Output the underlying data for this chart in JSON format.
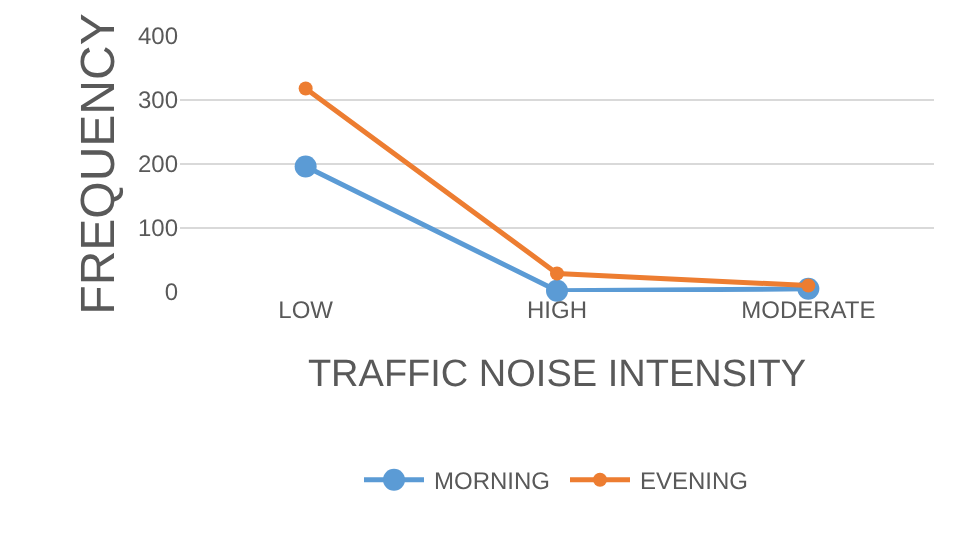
{
  "chart_data": {
    "type": "line",
    "xlabel": "TRAFFIC NOISE INTENSITY",
    "ylabel": "FREQUENCY",
    "categories": [
      "LOW",
      "HIGH",
      "MODERATE"
    ],
    "series": [
      {
        "name": "MORNING",
        "color": "#5b9bd5",
        "values": [
          196,
          2,
          5
        ]
      },
      {
        "name": "EVENING",
        "color": "#ed7d31",
        "values": [
          318,
          29,
          10
        ]
      }
    ],
    "ylim": [
      0,
      400
    ],
    "yticks": [
      0,
      100,
      200,
      300,
      400
    ],
    "grid": "y",
    "legend": "bottom",
    "marker": "circle",
    "line_style": "solid"
  }
}
